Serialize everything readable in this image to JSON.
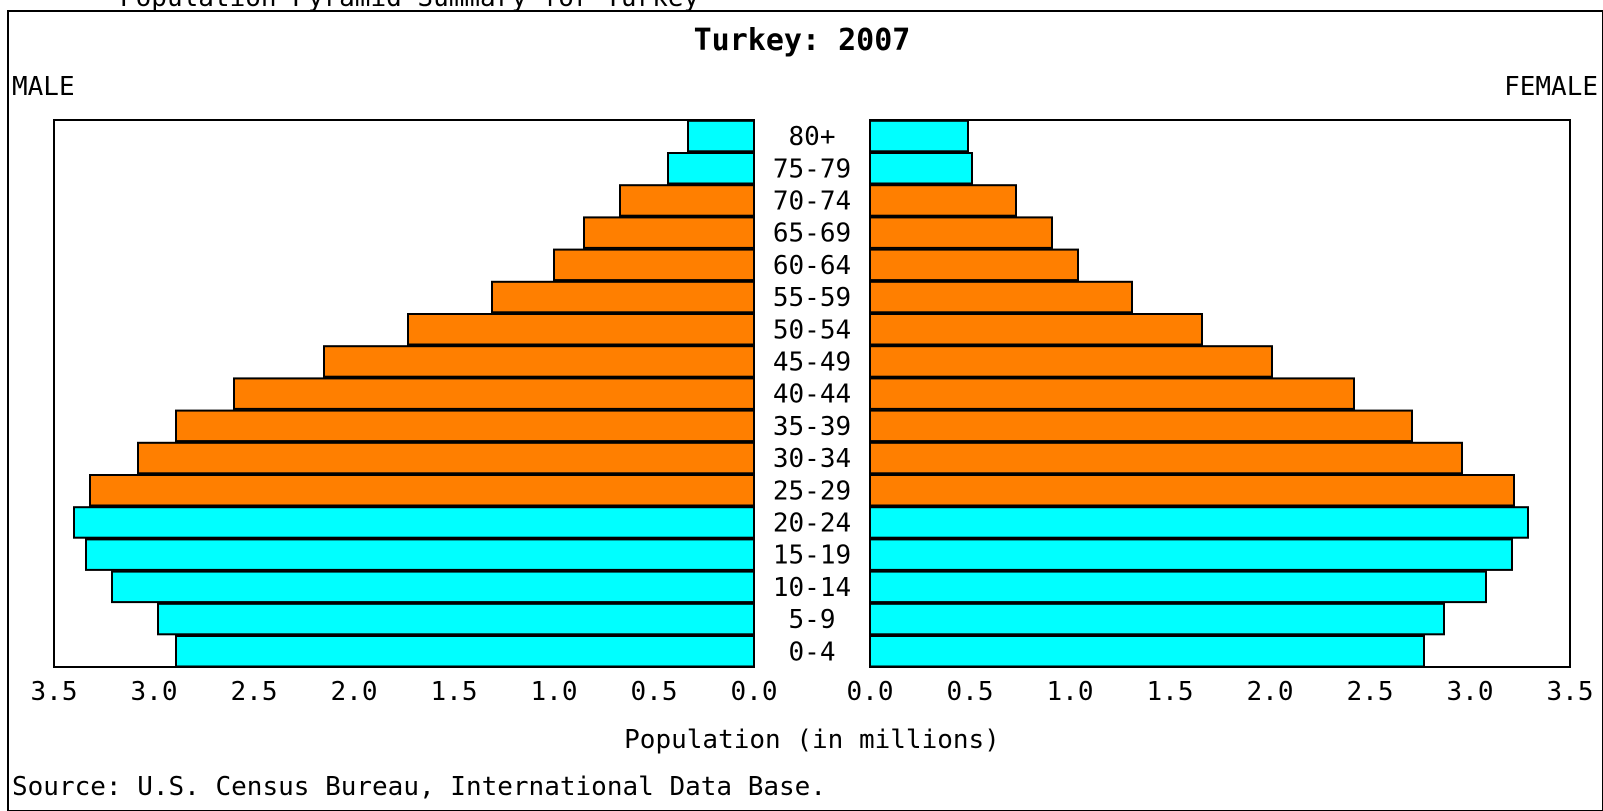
{
  "page": {
    "clipped_top_text": "Population Pyramid Summary for Turkey",
    "source": "Source: U.S. Census Bureau, International Data Base."
  },
  "chart_data": {
    "type": "bar",
    "orientation": "horizontal",
    "layout": "population-pyramid",
    "title": "Turkey: 2007",
    "left_label": "MALE",
    "right_label": "FEMALE",
    "xlabel": "Population (in millions)",
    "xlim": [
      0,
      3.5
    ],
    "x_ticks": [
      "0.0",
      "0.5",
      "1.0",
      "1.5",
      "2.0",
      "2.5",
      "3.0",
      "3.5"
    ],
    "categories": [
      "80+",
      "75-79",
      "70-74",
      "65-69",
      "60-64",
      "55-59",
      "50-54",
      "45-49",
      "40-44",
      "35-39",
      "30-34",
      "25-29",
      "20-24",
      "15-19",
      "10-14",
      "5-9",
      "0-4"
    ],
    "series": [
      {
        "name": "MALE",
        "values": [
          0.33,
          0.43,
          0.67,
          0.85,
          1.0,
          1.31,
          1.73,
          2.15,
          2.6,
          2.89,
          3.08,
          3.32,
          3.4,
          3.34,
          3.21,
          2.98,
          2.89
        ]
      },
      {
        "name": "FEMALE",
        "values": [
          0.49,
          0.51,
          0.73,
          0.91,
          1.04,
          1.31,
          1.66,
          2.01,
          2.42,
          2.71,
          2.96,
          3.22,
          3.29,
          3.21,
          3.08,
          2.87,
          2.77
        ]
      }
    ],
    "highlighted_categories": [
      "80+",
      "75-79",
      "20-24",
      "15-19",
      "10-14",
      "5-9",
      "0-4"
    ],
    "colors": {
      "highlight": "#00ffff",
      "default": "#ff7f00",
      "outline": "#000000"
    },
    "grid": false,
    "legend": "none"
  }
}
